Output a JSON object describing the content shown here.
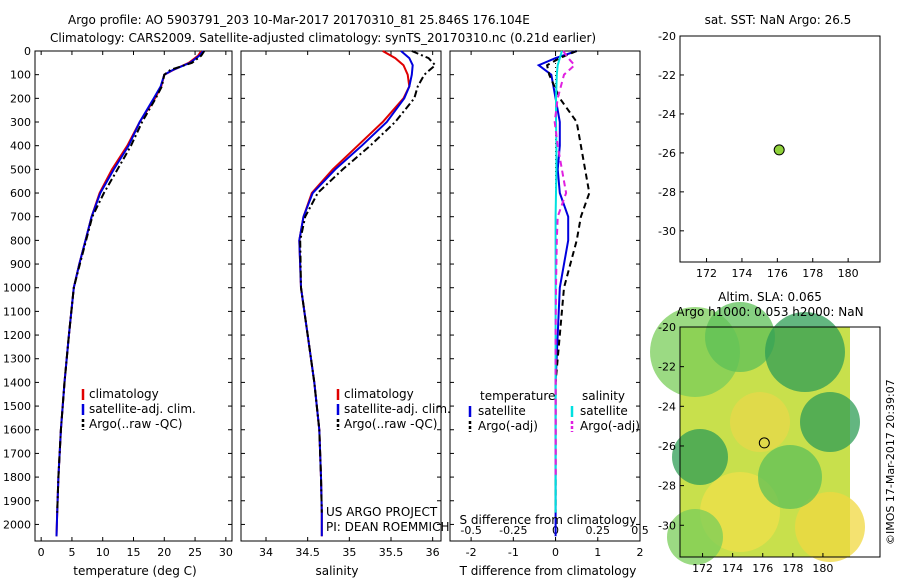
{
  "header": {
    "line1": "Argo profile: AO 5903791_203 10-Mar-2017 20170310_81 25.846S 176.104E",
    "line2": "Climatology: CARS2009. Satellite-adjusted climatology: synTS_20170310.nc (0.21d earlier)"
  },
  "side_credit": "©IMOS 17-Mar-2017 20:39:07",
  "project_text": [
    "US ARGO PROJECT",
    "PI: DEAN ROEMMICH"
  ],
  "colors": {
    "climatology": "#e00000",
    "satellite": "#0000dd",
    "argo": "#000000",
    "sal_sat": "#00e0e0",
    "sal_argo": "#e020e0"
  },
  "chart_data": [
    {
      "type": "line",
      "xlabel": "temperature (deg C)",
      "ylabel": "",
      "xlim": [
        -1,
        31
      ],
      "ylim": [
        2070,
        0
      ],
      "xticks": [
        "0",
        "5",
        "10",
        "15",
        "20",
        "25",
        "30"
      ],
      "xtick_values": [
        0,
        5,
        10,
        15,
        20,
        25,
        30
      ],
      "yticks": [
        "0",
        "100",
        "200",
        "300",
        "400",
        "500",
        "600",
        "700",
        "800",
        "900",
        "1000",
        "1100",
        "1200",
        "1300",
        "1400",
        "1500",
        "1600",
        "1700",
        "1800",
        "1900",
        "2000"
      ],
      "ytick_values": [
        0,
        100,
        200,
        300,
        400,
        500,
        600,
        700,
        800,
        900,
        1000,
        1100,
        1200,
        1300,
        1400,
        1500,
        1600,
        1700,
        1800,
        1900,
        2000
      ],
      "legend": [
        "climatology",
        "satellite-adj. clim.",
        "Argo(..raw -QC)"
      ],
      "series": [
        {
          "name": "climatology",
          "style": "solid",
          "x": [
            26,
            25.5,
            24,
            21.5,
            20,
            19.5,
            18.5,
            16,
            14,
            11.5,
            9.5,
            8.2,
            7.2,
            6.2,
            5.3,
            4.5,
            3.8,
            3.2,
            2.8,
            2.6,
            2.5
          ],
          "y": [
            0,
            20,
            50,
            80,
            100,
            150,
            200,
            300,
            400,
            500,
            600,
            700,
            800,
            900,
            1000,
            1200,
            1400,
            1600,
            1800,
            1950,
            2050
          ]
        },
        {
          "name": "satellite-adj. clim.",
          "style": "solid",
          "x": [
            26.3,
            25.7,
            24.2,
            21.4,
            20,
            19.4,
            18.3,
            16,
            14.2,
            11.8,
            9.6,
            8.2,
            7.2,
            6.2,
            5.3,
            4.5,
            3.8,
            3.2,
            2.8,
            2.6,
            2.5
          ],
          "y": [
            0,
            20,
            50,
            80,
            100,
            150,
            200,
            300,
            400,
            500,
            600,
            700,
            800,
            900,
            1000,
            1200,
            1400,
            1600,
            1800,
            1950,
            2050
          ]
        },
        {
          "name": "Argo(..raw -QC)",
          "style": "dashdot",
          "x": [
            26.5,
            26,
            24.5,
            21,
            20,
            19.6,
            18.6,
            16.4,
            14.6,
            12.4,
            10.2,
            8.3,
            7.3,
            6.3,
            5.3,
            4.5,
            3.8,
            3.2,
            2.8,
            2.6
          ],
          "y": [
            0,
            20,
            50,
            80,
            100,
            150,
            200,
            300,
            400,
            500,
            600,
            700,
            800,
            900,
            1000,
            1200,
            1400,
            1600,
            1800,
            1950
          ]
        }
      ]
    },
    {
      "type": "line",
      "xlabel": "salinity",
      "ylabel": "",
      "xlim": [
        33.7,
        36.1
      ],
      "ylim": [
        2070,
        0
      ],
      "xticks": [
        "34",
        "34.5",
        "35",
        "35.5",
        "36"
      ],
      "xtick_values": [
        34,
        34.5,
        35,
        35.5,
        36
      ],
      "legend": [
        "climatology",
        "satellite-adj. clim.",
        "Argo(..raw -QC)"
      ],
      "series": [
        {
          "name": "climatology",
          "style": "solid",
          "x": [
            35.4,
            35.55,
            35.65,
            35.7,
            35.72,
            35.65,
            35.4,
            35.1,
            34.8,
            34.55,
            34.45,
            34.4,
            34.42,
            34.5,
            34.58,
            34.64,
            34.66,
            34.67,
            34.67
          ],
          "y": [
            0,
            30,
            60,
            100,
            150,
            200,
            300,
            400,
            500,
            600,
            700,
            800,
            1000,
            1200,
            1400,
            1600,
            1800,
            1950,
            2050
          ]
        },
        {
          "name": "satellite-adj. clim.",
          "style": "solid",
          "x": [
            35.62,
            35.72,
            35.76,
            35.75,
            35.72,
            35.66,
            35.45,
            35.15,
            34.83,
            34.56,
            34.45,
            34.4,
            34.42,
            34.5,
            34.58,
            34.64,
            34.66,
            34.67,
            34.67
          ],
          "y": [
            0,
            30,
            60,
            100,
            150,
            200,
            300,
            400,
            500,
            600,
            700,
            800,
            1000,
            1200,
            1400,
            1600,
            1800,
            1950,
            2050
          ]
        },
        {
          "name": "Argo(..raw -QC)",
          "style": "dashdot",
          "x": [
            35.75,
            35.95,
            36.03,
            35.9,
            35.82,
            35.78,
            35.55,
            35.25,
            34.92,
            34.62,
            34.47,
            34.41,
            34.42,
            34.5,
            34.58,
            34.64,
            34.66,
            34.67
          ],
          "y": [
            0,
            30,
            60,
            100,
            150,
            200,
            300,
            400,
            500,
            600,
            700,
            800,
            1000,
            1200,
            1400,
            1600,
            1800,
            1950
          ]
        }
      ]
    },
    {
      "type": "line",
      "xlabel": "T difference from climatology",
      "top_axis_label": "S difference from climatology",
      "xlim": [
        -2.5,
        2
      ],
      "ylim": [
        2070,
        0
      ],
      "xticks": [
        "-2",
        "-1",
        "0",
        "1",
        "2"
      ],
      "xtick_values": [
        -2,
        -1,
        0,
        1,
        2
      ],
      "top_xticks": [
        "-0.5",
        "-0.25",
        "0",
        "0.25",
        "0.5"
      ],
      "top_xtick_values": [
        -0.5,
        -0.25,
        0,
        0.25,
        0.5
      ],
      "legend_groups": [
        {
          "title": "temperature",
          "items": [
            "satellite",
            "Argo(-adj)"
          ]
        },
        {
          "title": "salinity",
          "items": [
            "satellite",
            "Argo(-adj)"
          ]
        }
      ],
      "series": [
        {
          "name": "temperature satellite",
          "style": "solid",
          "x": [
            0.5,
            0,
            -0.4,
            -0.1,
            0,
            0.1,
            0.1,
            0.05,
            0.1,
            0.3,
            0.3,
            0.1,
            0.05,
            0,
            0,
            0,
            0,
            0
          ],
          "y": [
            0,
            30,
            60,
            100,
            200,
            300,
            400,
            500,
            600,
            700,
            800,
            1000,
            1200,
            1400,
            1600,
            1800,
            1950,
            2050
          ]
        },
        {
          "name": "temperature Argo(-adj)",
          "style": "dashed",
          "x": [
            0.5,
            0.1,
            -0.2,
            -0.15,
            0.1,
            0.5,
            0.6,
            0.7,
            0.8,
            0.6,
            0.5,
            0.2,
            0.1,
            0,
            0,
            0,
            0
          ],
          "y": [
            0,
            30,
            60,
            100,
            200,
            300,
            400,
            500,
            600,
            700,
            800,
            1000,
            1200,
            1400,
            1600,
            1800,
            1950
          ]
        },
        {
          "name": "salinity satellite",
          "style": "solid",
          "x": [
            0.15,
            0.1,
            0.05,
            0.03,
            0.01,
            0.01,
            0.02,
            0.02,
            0.01,
            0,
            0,
            0,
            0,
            0,
            0,
            0,
            0
          ],
          "y": [
            0,
            30,
            60,
            100,
            200,
            300,
            400,
            500,
            600,
            700,
            800,
            1000,
            1200,
            1400,
            1600,
            1800,
            1950
          ]
        },
        {
          "name": "salinity Argo(-adj)",
          "style": "dashed",
          "x": [
            0.18,
            0.3,
            0.45,
            0.2,
            0.05,
            -0.02,
            0.05,
            0.15,
            0.25,
            0.05,
            0.03,
            0.01,
            0,
            0,
            0,
            0
          ],
          "y": [
            0,
            30,
            60,
            100,
            200,
            300,
            400,
            500,
            600,
            700,
            800,
            1000,
            1200,
            1400,
            1600,
            1800
          ]
        }
      ]
    },
    {
      "type": "scatter",
      "title": "sat. SST: NaN Argo: 26.5",
      "xlim": [
        170.5,
        181.8
      ],
      "ylim": [
        -31.6,
        -20
      ],
      "xticks": [
        "172",
        "174",
        "176",
        "178",
        "180"
      ],
      "xtick_values": [
        172,
        174,
        176,
        178,
        180
      ],
      "yticks": [
        "-20",
        "-22",
        "-24",
        "-26",
        "-28",
        "-30"
      ],
      "ytick_values": [
        -20,
        -22,
        -24,
        -26,
        -28,
        -30
      ],
      "points": [
        {
          "x": 176.104,
          "y": -25.846,
          "label": "Argo"
        }
      ]
    },
    {
      "type": "heatmap",
      "title_lines": [
        "Altim. SLA: 0.065",
        "Argo h1000: 0.053 h2000: NaN"
      ],
      "xlim": [
        170.5,
        181.8
      ],
      "ylim": [
        -31.6,
        -20
      ],
      "xticks": [
        "172",
        "174",
        "176",
        "178",
        "180"
      ],
      "xtick_values": [
        172,
        174,
        176,
        178,
        180
      ],
      "yticks": [
        "-20",
        "-22",
        "-24",
        "-26",
        "-28",
        "-30"
      ],
      "ytick_values": [
        -20,
        -22,
        -24,
        -26,
        -28,
        -30
      ],
      "points": [
        {
          "x": 176.104,
          "y": -25.846,
          "label": "Argo"
        }
      ]
    }
  ]
}
